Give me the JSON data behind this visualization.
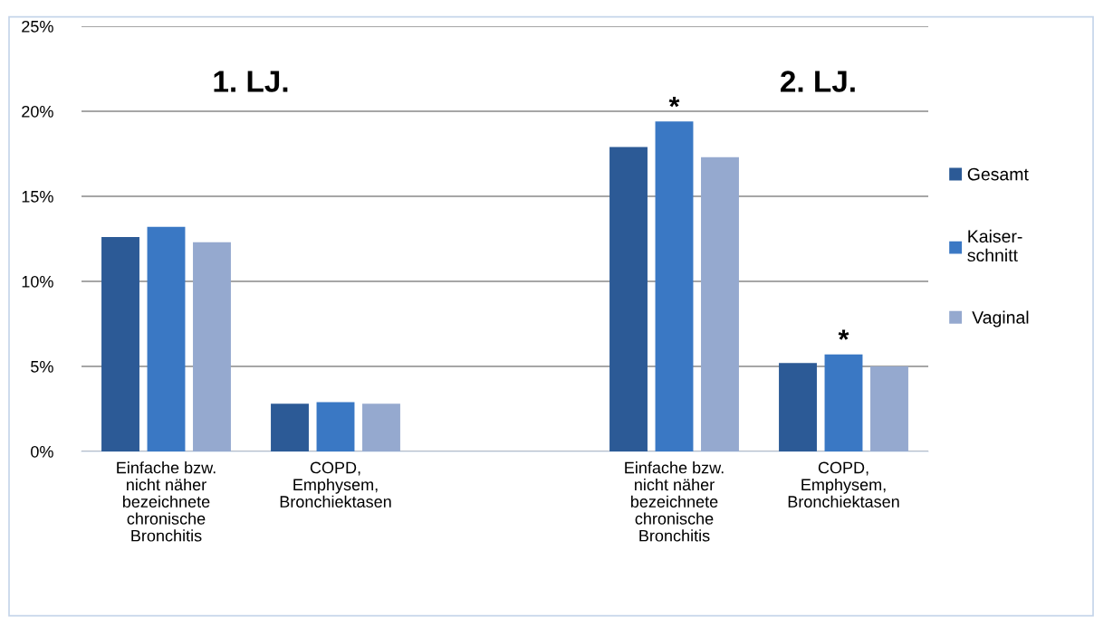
{
  "chart_data": {
    "type": "bar",
    "categories": [
      "Einfache bzw.\nnicht näher\nbezeichnete\nchronische\nBronchitis",
      "COPD,\nEmphysem,\nBronchiektasen",
      null,
      "Einfache bzw.\nnicht näher\nbezeichnete\nchronische\nBronchitis",
      "COPD,\nEmphysem,\nBronchiektasen"
    ],
    "series": [
      {
        "name": "Gesamt",
        "color": "#2c5a96",
        "values": [
          12.6,
          2.8,
          null,
          17.9,
          5.2
        ]
      },
      {
        "name": "Kaiser-\nschnitt",
        "color": "#3a78c4",
        "values": [
          13.2,
          2.9,
          null,
          19.4,
          5.7
        ],
        "value_labels": [
          null,
          null,
          null,
          "*",
          "*"
        ]
      },
      {
        "name": " Vaginal",
        "color": "#95a9cf",
        "values": [
          12.3,
          2.8,
          null,
          17.3,
          5.0
        ]
      }
    ],
    "ylim": [
      0,
      25
    ],
    "yticks": [
      {
        "value": 0,
        "label": "0%"
      },
      {
        "value": 5,
        "label": "5%"
      },
      {
        "value": 10,
        "label": "10%"
      },
      {
        "value": 15,
        "label": "15%"
      },
      {
        "value": 20,
        "label": "20%"
      },
      {
        "value": 25,
        "label": "25%"
      }
    ],
    "annotations": [
      "1. LJ.",
      "2. LJ."
    ],
    "grid": "y",
    "legend": "right"
  }
}
